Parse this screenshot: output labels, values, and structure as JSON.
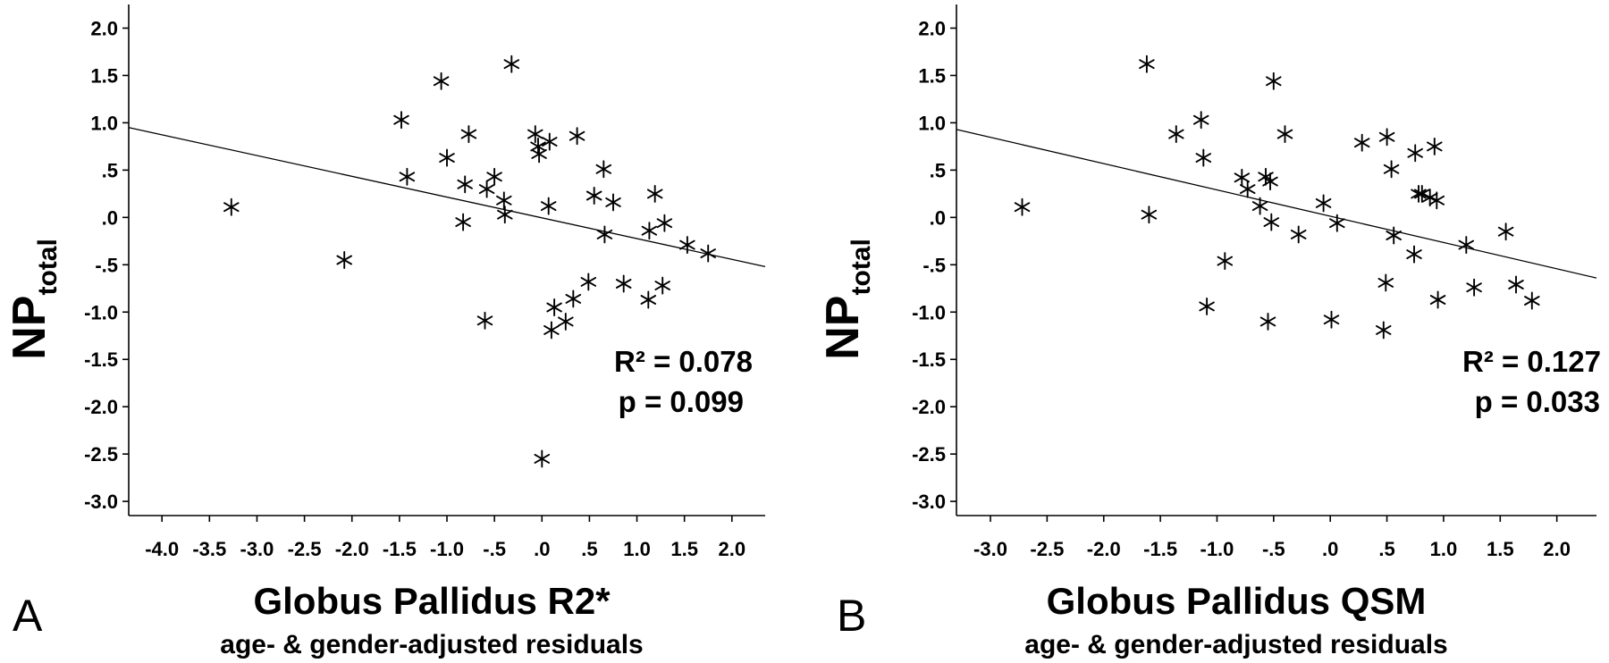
{
  "chart_data": [
    {
      "type": "scatter",
      "panel_label": "A",
      "xlabel": "Globus Pallidus R2*",
      "xlabel_sub": "age- & gender-adjusted residuals",
      "ylabel": "NP",
      "ylabel_sub": "total",
      "xlim": [
        -4.35,
        2.35
      ],
      "ylim": [
        -3.15,
        2.25
      ],
      "xticks": [
        -4.0,
        -3.5,
        -3.0,
        -2.5,
        -2.0,
        -1.5,
        -1.0,
        -0.5,
        0.0,
        0.5,
        1.0,
        1.5,
        2.0
      ],
      "xtick_labels": [
        "-4.0",
        "-3.5",
        "-3.0",
        "-2.5",
        "-2.0",
        "-1.5",
        "-1.0",
        "-.5",
        ".0",
        ".5",
        "1.0",
        "1.5",
        "2.0"
      ],
      "yticks": [
        2.0,
        1.5,
        1.0,
        0.5,
        0.0,
        -0.5,
        -1.0,
        -1.5,
        -2.0,
        -2.5,
        -3.0
      ],
      "ytick_labels": [
        "2.0",
        "1.5",
        "1.0",
        ".5",
        ".0",
        "-.5",
        "-1.0",
        "-1.5",
        "-2.0",
        "-2.5",
        "-3.0"
      ],
      "marker": "star",
      "fit_line": {
        "x": [
          -4.35,
          2.35
        ],
        "y": [
          0.95,
          -0.52
        ]
      },
      "annotations": [
        "R² = 0.078",
        "p = 0.099"
      ],
      "x": [
        -3.27,
        -2.08,
        -1.48,
        -1.42,
        -1.06,
        -1.0,
        -0.83,
        -0.81,
        -0.77,
        -0.6,
        -0.58,
        -0.5,
        -0.4,
        -0.39,
        -0.32,
        -0.07,
        -0.04,
        -0.03,
        0.0,
        0.07,
        0.08,
        0.1,
        0.13,
        0.25,
        0.33,
        0.37,
        0.49,
        0.55,
        0.65,
        0.66,
        0.75,
        0.86,
        1.12,
        1.13,
        1.19,
        1.27,
        1.29,
        1.53,
        1.75
      ],
      "y": [
        0.11,
        -0.45,
        1.03,
        0.43,
        1.44,
        0.63,
        -0.05,
        0.35,
        0.88,
        -1.09,
        0.3,
        0.43,
        0.18,
        0.03,
        1.62,
        0.88,
        0.75,
        0.67,
        -2.55,
        0.12,
        0.8,
        -1.19,
        -0.95,
        -1.1,
        -0.86,
        0.86,
        -0.68,
        0.23,
        0.51,
        -0.18,
        0.16,
        -0.7,
        -0.87,
        -0.14,
        0.25,
        -0.72,
        -0.06,
        -0.29,
        -0.38
      ]
    },
    {
      "type": "scatter",
      "panel_label": "B",
      "xlabel": "Globus Pallidus QSM",
      "xlabel_sub": "age- & gender-adjusted residuals",
      "ylabel": "NP",
      "ylabel_sub": "total",
      "xlim": [
        -3.3,
        2.35
      ],
      "ylim": [
        -3.15,
        2.25
      ],
      "xticks": [
        -3.0,
        -2.5,
        -2.0,
        -1.5,
        -1.0,
        -0.5,
        0.0,
        0.5,
        1.0,
        1.5,
        2.0
      ],
      "xtick_labels": [
        "-3.0",
        "-2.5",
        "-2.0",
        "-1.5",
        "-1.0",
        "-.5",
        ".0",
        ".5",
        "1.0",
        "1.5",
        "2.0"
      ],
      "yticks": [
        2.0,
        1.5,
        1.0,
        0.5,
        0.0,
        -0.5,
        -1.0,
        -1.5,
        -2.0,
        -2.5,
        -3.0
      ],
      "ytick_labels": [
        "2.0",
        "1.5",
        "1.0",
        ".5",
        ".0",
        "-.5",
        "-1.0",
        "-1.5",
        "-2.0",
        "-2.5",
        "-3.0"
      ],
      "marker": "star",
      "fit_line": {
        "x": [
          -3.3,
          2.35
        ],
        "y": [
          0.93,
          -0.64
        ]
      },
      "annotations": [
        "R² = 0.127",
        "p = 0.033"
      ],
      "x": [
        -2.72,
        -1.62,
        -1.6,
        -1.36,
        -1.14,
        -1.12,
        -1.09,
        -0.93,
        -0.78,
        -0.73,
        -0.62,
        -0.57,
        -0.55,
        -0.53,
        -0.52,
        -0.5,
        -0.4,
        -0.28,
        -0.06,
        0.01,
        0.06,
        0.28,
        0.47,
        0.49,
        0.5,
        0.54,
        0.56,
        0.74,
        0.75,
        0.78,
        0.81,
        0.88,
        0.92,
        0.94,
        0.95,
        1.2,
        1.27,
        1.55,
        1.64,
        1.78
      ],
      "y": [
        0.11,
        1.62,
        0.03,
        0.88,
        1.03,
        0.63,
        -0.94,
        -0.46,
        0.42,
        0.3,
        0.12,
        0.43,
        -1.1,
        0.38,
        -0.05,
        1.44,
        0.88,
        -0.18,
        0.15,
        -1.08,
        -0.06,
        0.79,
        -1.19,
        -0.69,
        0.85,
        0.51,
        -0.19,
        -0.39,
        0.68,
        0.25,
        0.25,
        0.21,
        0.75,
        0.18,
        -0.87,
        -0.29,
        -0.74,
        -0.15,
        -0.71,
        -0.88
      ]
    }
  ]
}
